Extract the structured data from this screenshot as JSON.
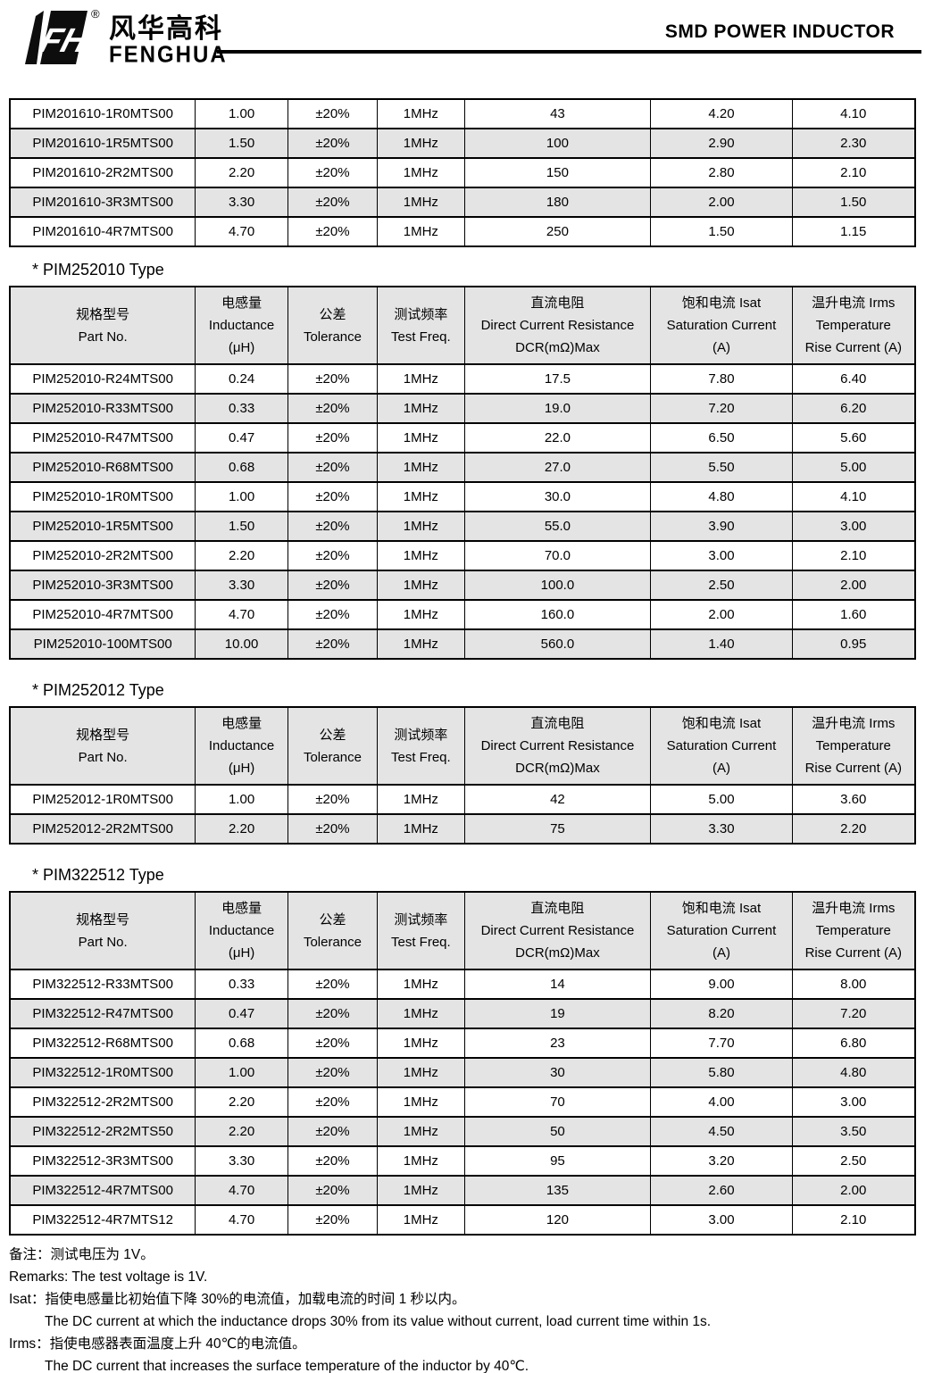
{
  "header": {
    "logo_monogram": "FH",
    "registered_mark": "®",
    "brand_chinese": "风华高科",
    "brand_english": "FENGHUA",
    "title": "SMD POWER INDUCTOR"
  },
  "columns": [
    {
      "id": "part_no",
      "lines": [
        "规格型号",
        "Part No."
      ]
    },
    {
      "id": "inductance",
      "lines": [
        "电感量",
        "Inductance",
        "(μH)"
      ]
    },
    {
      "id": "tolerance",
      "lines": [
        "公差",
        "Tolerance"
      ]
    },
    {
      "id": "test_freq",
      "lines": [
        "测试频率",
        "Test Freq."
      ]
    },
    {
      "id": "dcr",
      "lines": [
        "直流电阻",
        "Direct Current Resistance",
        "DCR(mΩ)Max"
      ]
    },
    {
      "id": "isat",
      "lines": [
        "饱和电流 Isat",
        "Saturation Current",
        "(A)"
      ]
    },
    {
      "id": "irms",
      "lines": [
        "温升电流 Irms",
        "Temperature",
        "Rise Current (A)"
      ]
    }
  ],
  "column_widths": [
    "20.5%",
    "10.2%",
    "9.9%",
    "9.6%",
    "20.6%",
    "15.6%",
    "13.6%"
  ],
  "tables": [
    {
      "title": null,
      "has_header": false,
      "rows": [
        [
          "PIM201610-1R0MTS00",
          "1.00",
          "±20%",
          "1MHz",
          "43",
          "4.20",
          "4.10"
        ],
        [
          "PIM201610-1R5MTS00",
          "1.50",
          "±20%",
          "1MHz",
          "100",
          "2.90",
          "2.30"
        ],
        [
          "PIM201610-2R2MTS00",
          "2.20",
          "±20%",
          "1MHz",
          "150",
          "2.80",
          "2.10"
        ],
        [
          "PIM201610-3R3MTS00",
          "3.30",
          "±20%",
          "1MHz",
          "180",
          "2.00",
          "1.50"
        ],
        [
          "PIM201610-4R7MTS00",
          "4.70",
          "±20%",
          "1MHz",
          "250",
          "1.50",
          "1.15"
        ]
      ]
    },
    {
      "title": "* PIM252010 Type",
      "has_header": true,
      "rows": [
        [
          "PIM252010-R24MTS00",
          "0.24",
          "±20%",
          "1MHz",
          "17.5",
          "7.80",
          "6.40"
        ],
        [
          "PIM252010-R33MTS00",
          "0.33",
          "±20%",
          "1MHz",
          "19.0",
          "7.20",
          "6.20"
        ],
        [
          "PIM252010-R47MTS00",
          "0.47",
          "±20%",
          "1MHz",
          "22.0",
          "6.50",
          "5.60"
        ],
        [
          "PIM252010-R68MTS00",
          "0.68",
          "±20%",
          "1MHz",
          "27.0",
          "5.50",
          "5.00"
        ],
        [
          "PIM252010-1R0MTS00",
          "1.00",
          "±20%",
          "1MHz",
          "30.0",
          "4.80",
          "4.10"
        ],
        [
          "PIM252010-1R5MTS00",
          "1.50",
          "±20%",
          "1MHz",
          "55.0",
          "3.90",
          "3.00"
        ],
        [
          "PIM252010-2R2MTS00",
          "2.20",
          "±20%",
          "1MHz",
          "70.0",
          "3.00",
          "2.10"
        ],
        [
          "PIM252010-3R3MTS00",
          "3.30",
          "±20%",
          "1MHz",
          "100.0",
          "2.50",
          "2.00"
        ],
        [
          "PIM252010-4R7MTS00",
          "4.70",
          "±20%",
          "1MHz",
          "160.0",
          "2.00",
          "1.60"
        ],
        [
          "PIM252010-100MTS00",
          "10.00",
          "±20%",
          "1MHz",
          "560.0",
          "1.40",
          "0.95"
        ]
      ]
    },
    {
      "title": "* PIM252012 Type",
      "has_header": true,
      "rows": [
        [
          "PIM252012-1R0MTS00",
          "1.00",
          "±20%",
          "1MHz",
          "42",
          "5.00",
          "3.60"
        ],
        [
          "PIM252012-2R2MTS00",
          "2.20",
          "±20%",
          "1MHz",
          "75",
          "3.30",
          "2.20"
        ]
      ]
    },
    {
      "title": "* PIM322512 Type",
      "has_header": true,
      "rows": [
        [
          "PIM322512-R33MTS00",
          "0.33",
          "±20%",
          "1MHz",
          "14",
          "9.00",
          "8.00"
        ],
        [
          "PIM322512-R47MTS00",
          "0.47",
          "±20%",
          "1MHz",
          "19",
          "8.20",
          "7.20"
        ],
        [
          "PIM322512-R68MTS00",
          "0.68",
          "±20%",
          "1MHz",
          "23",
          "7.70",
          "6.80"
        ],
        [
          "PIM322512-1R0MTS00",
          "1.00",
          "±20%",
          "1MHz",
          "30",
          "5.80",
          "4.80"
        ],
        [
          "PIM322512-2R2MTS00",
          "2.20",
          "±20%",
          "1MHz",
          "70",
          "4.00",
          "3.00"
        ],
        [
          "PIM322512-2R2MTS50",
          "2.20",
          "±20%",
          "1MHz",
          "50",
          "4.50",
          "3.50"
        ],
        [
          "PIM322512-3R3MTS00",
          "3.30",
          "±20%",
          "1MHz",
          "95",
          "3.20",
          "2.50"
        ],
        [
          "PIM322512-4R7MTS00",
          "4.70",
          "±20%",
          "1MHz",
          "135",
          "2.60",
          "2.00"
        ],
        [
          "PIM322512-4R7MTS12",
          "4.70",
          "±20%",
          "1MHz",
          "120",
          "3.00",
          "2.10"
        ]
      ]
    }
  ],
  "remarks": [
    {
      "text": "备注：测试电压为 1V。",
      "indent": false
    },
    {
      "text": "Remarks: The test voltage is 1V.",
      "indent": false
    },
    {
      "text": "Isat：指使电感量比初始值下降 30%的电流值，加载电流的时间 1 秒以内。",
      "indent": false
    },
    {
      "text": "The DC current at which the inductance drops 30% from its value without current, load current time within 1s.",
      "indent": true
    },
    {
      "text": "Irms：指使电感器表面温度上升 40℃的电流值。",
      "indent": false
    },
    {
      "text": "The DC current that increases the surface temperature of the inductor by 40℃.",
      "indent": true
    }
  ],
  "colors": {
    "table_border": "#000000",
    "row_stripe": "#e4e4e4",
    "header_fill": "#e4e4e4",
    "rule": "#000000"
  }
}
